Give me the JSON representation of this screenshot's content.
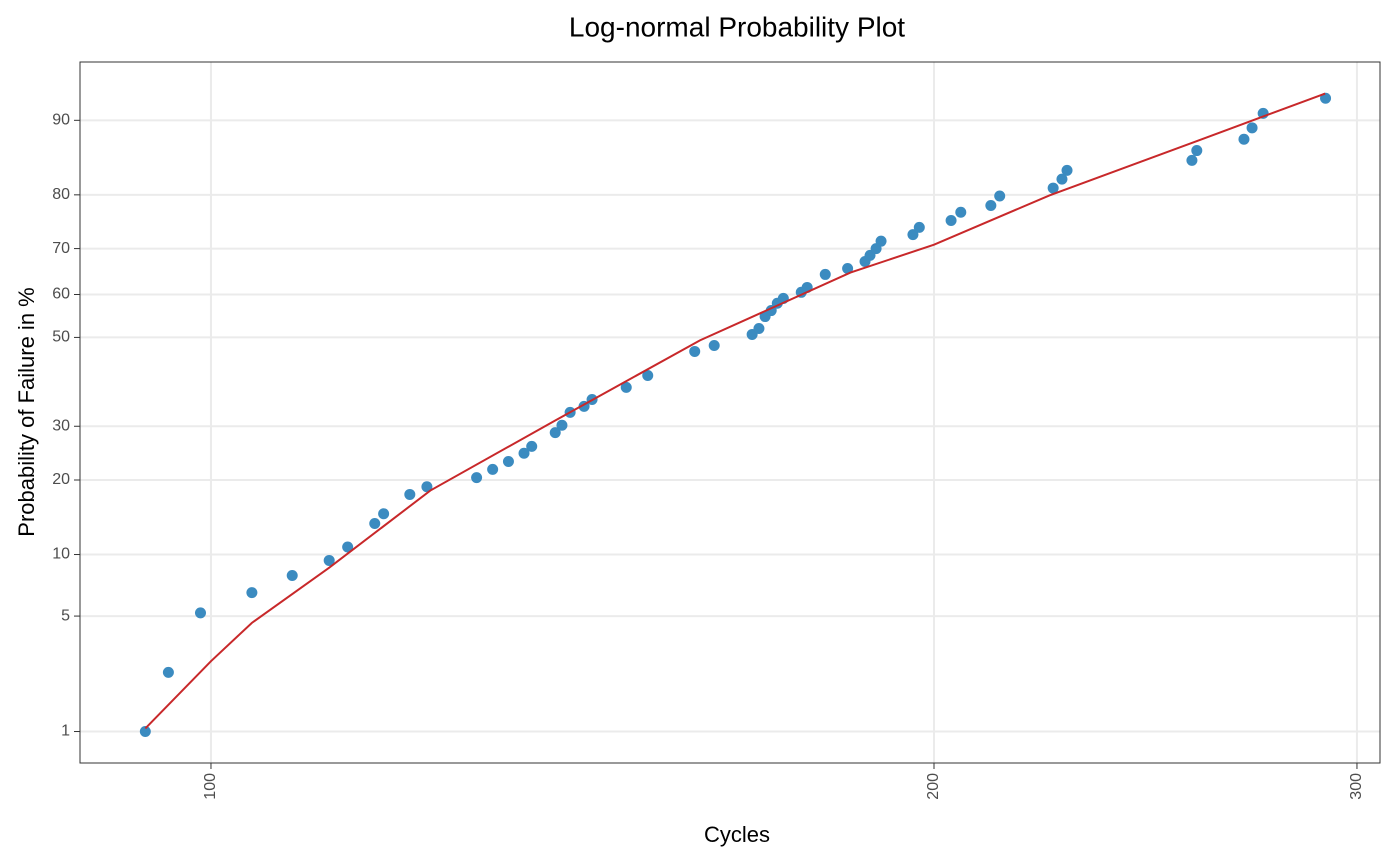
{
  "chart_data": {
    "type": "scatter",
    "title": "Log-normal Probability Plot",
    "x_label": "Cycles",
    "y_label": "Probability of Failure in %",
    "xscale": "log",
    "yscale": "normal-probability",
    "grid": true,
    "xlim": [
      88.2,
      306.7
    ],
    "ylim": [
      0.6,
      94.8
    ],
    "xticks": [
      100,
      200,
      300
    ],
    "yticks": [
      1,
      5,
      10,
      20,
      30,
      50,
      60,
      70,
      80,
      90
    ],
    "series": [
      {
        "kind": "scatter",
        "color": "#3b8bc0",
        "x": [
          93.9,
          96.0,
          99.0,
          104.0,
          108.1,
          112.0,
          114.0,
          117.0,
          118.0,
          121.0,
          123.0,
          129.0,
          131.0,
          133.0,
          135.0,
          136.0,
          139.1,
          140.0,
          141.1,
          143.0,
          144.1,
          148.9,
          152.0,
          159.0,
          162.0,
          168.0,
          169.1,
          170.1,
          171.1,
          172.1,
          173.1,
          176.1,
          177.1,
          180.2,
          184.1,
          187.2,
          188.1,
          189.2,
          190.1,
          196.0,
          197.2,
          203.3,
          205.2,
          211.2,
          213.0,
          224.2,
          226.1,
          227.2,
          256.1,
          257.3,
          269.2,
          271.3,
          274.2,
          291.1
        ],
        "values": [
          1.0,
          2.4,
          5.2,
          6.6,
          8.0,
          9.4,
          10.8,
          13.6,
          14.9,
          17.7,
          18.9,
          20.4,
          21.8,
          23.2,
          24.7,
          26.0,
          28.7,
          30.2,
          32.9,
          34.2,
          35.7,
          38.4,
          41.1,
          46.7,
          48.1,
          50.7,
          52.1,
          54.9,
          56.3,
          58.0,
          59.1,
          60.5,
          61.6,
          64.5,
          65.8,
          67.3,
          68.6,
          70.0,
          71.5,
          72.8,
          74.2,
          75.5,
          77.0,
          78.2,
          79.8,
          81.1,
          82.5,
          83.8,
          85.2,
          86.5,
          87.9,
          89.2,
          90.7,
          92.1
        ]
      },
      {
        "kind": "line",
        "color": "#c8282a",
        "x": [
          93.9,
          100,
          104.0,
          112.0,
          123.4,
          139.1,
          159.8,
          184.6,
          200,
          223.4,
          258.0,
          291.0
        ],
        "values": [
          1.05,
          2.8,
          4.6,
          8.7,
          18.3,
          31.2,
          49.3,
          64.9,
          70.8,
          79.9,
          87.8,
          92.5
        ]
      }
    ]
  }
}
